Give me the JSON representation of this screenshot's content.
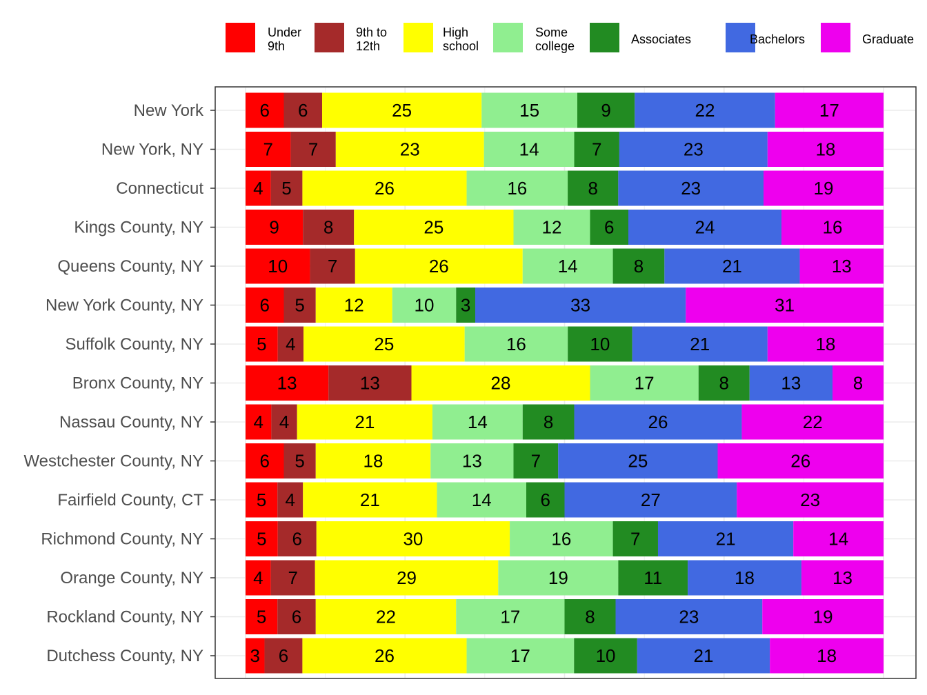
{
  "chart_data": {
    "type": "bar",
    "orientation": "horizontal",
    "stacked": "percent",
    "grid": true,
    "legend_position": "top",
    "categories": [
      "New York",
      "New York, NY",
      "Connecticut",
      "Kings County, NY",
      "Queens County, NY",
      "New York County, NY",
      "Suffolk County, NY",
      "Bronx County, NY",
      "Nassau County, NY",
      "Westchester County, NY",
      "Fairfield County, CT",
      "Richmond County, NY",
      "Orange County, NY",
      "Rockland County, NY",
      "Dutchess County, NY"
    ],
    "series": [
      {
        "name": "Under 9th",
        "legend_lines": [
          "Under",
          "9th"
        ],
        "color": "#FF0000",
        "values": [
          6,
          7,
          4,
          9,
          10,
          6,
          5,
          13,
          4,
          6,
          5,
          5,
          4,
          5,
          3
        ]
      },
      {
        "name": "9th to 12th",
        "legend_lines": [
          "9th to",
          "12th"
        ],
        "color": "#A52A2A",
        "values": [
          6,
          7,
          5,
          8,
          7,
          5,
          4,
          13,
          4,
          5,
          4,
          6,
          7,
          6,
          6
        ]
      },
      {
        "name": "High school",
        "legend_lines": [
          "High",
          "school"
        ],
        "color": "#FFFF00",
        "values": [
          25,
          23,
          26,
          25,
          26,
          12,
          25,
          28,
          21,
          18,
          21,
          30,
          29,
          22,
          26
        ]
      },
      {
        "name": "Some college",
        "legend_lines": [
          "Some",
          "college"
        ],
        "color": "#90EE90",
        "values": [
          15,
          14,
          16,
          12,
          14,
          10,
          16,
          17,
          14,
          13,
          14,
          16,
          19,
          17,
          17
        ]
      },
      {
        "name": "Associates",
        "legend_lines": [
          "Associates"
        ],
        "color": "#228B22",
        "values": [
          9,
          7,
          8,
          6,
          8,
          3,
          10,
          8,
          8,
          7,
          6,
          7,
          11,
          8,
          10
        ]
      },
      {
        "name": "Bachelors",
        "legend_lines": [
          "Bachelors"
        ],
        "color": "#4169E1",
        "values": [
          22,
          23,
          23,
          24,
          21,
          33,
          21,
          13,
          26,
          25,
          27,
          21,
          18,
          23,
          21
        ]
      },
      {
        "name": "Graduate",
        "legend_lines": [
          "Graduate"
        ],
        "color": "#EE00EE",
        "values": [
          17,
          18,
          19,
          16,
          13,
          31,
          18,
          8,
          22,
          26,
          23,
          14,
          13,
          19,
          18
        ]
      }
    ]
  }
}
